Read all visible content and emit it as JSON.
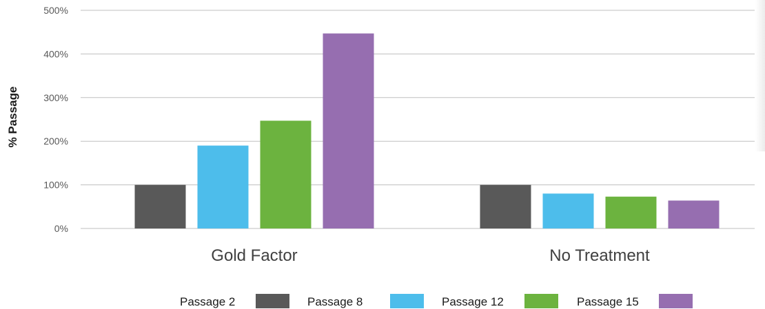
{
  "chart_data": {
    "type": "bar",
    "title": "",
    "xlabel": "",
    "ylabel": "% Passage",
    "ylim": [
      0,
      500
    ],
    "y_ticks": [
      0,
      100,
      200,
      300,
      400,
      500
    ],
    "y_tick_labels": [
      "0%",
      "100%",
      "200%",
      "300%",
      "400%",
      "500%"
    ],
    "grid": true,
    "legend_position": "bottom",
    "categories": [
      "Gold Factor",
      "No Treatment"
    ],
    "series": [
      {
        "name": "Passage 2",
        "color": "#595959",
        "values": [
          100,
          100
        ]
      },
      {
        "name": "Passage 8",
        "color": "#4dbdeb",
        "values": [
          190,
          80
        ]
      },
      {
        "name": "Passage 12",
        "color": "#6cb33f",
        "values": [
          247,
          73
        ]
      },
      {
        "name": "Passage 15",
        "color": "#966eb0",
        "values": [
          447,
          64
        ]
      }
    ]
  }
}
